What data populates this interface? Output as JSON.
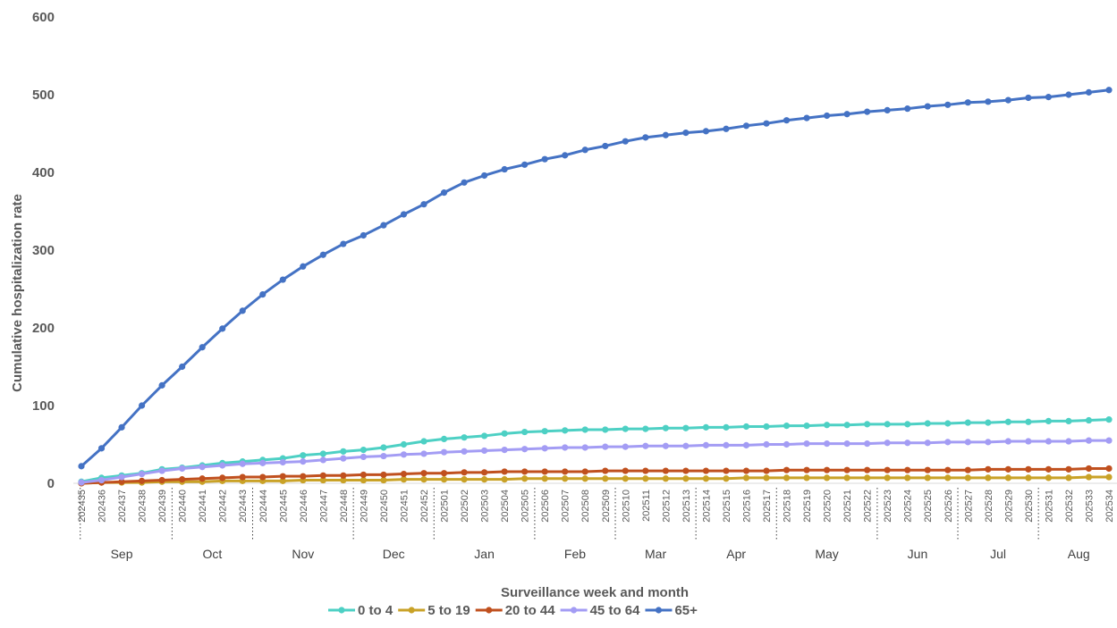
{
  "chart_data": {
    "type": "line",
    "xlabel": "Surveillance week and month",
    "ylabel": "Cumulative hospitalization rate",
    "ylim": [
      0,
      600
    ],
    "yticks": [
      "0",
      "100",
      "200",
      "300",
      "400",
      "500",
      "600"
    ],
    "grid": false,
    "legend": "bottom",
    "x": [
      "202435",
      "202436",
      "202437",
      "202438",
      "202439",
      "202440",
      "202441",
      "202442",
      "202443",
      "202444",
      "202445",
      "202446",
      "202447",
      "202448",
      "202449",
      "202450",
      "202451",
      "202452",
      "202501",
      "202502",
      "202503",
      "202504",
      "202505",
      "202506",
      "202507",
      "202508",
      "202509",
      "202510",
      "202511",
      "202512",
      "202513",
      "202514",
      "202515",
      "202516",
      "202517",
      "202518",
      "202519",
      "202520",
      "202521",
      "202522",
      "202523",
      "202524",
      "202525",
      "202526",
      "202527",
      "202528",
      "202529",
      "202530",
      "202531",
      "202532",
      "202533",
      "202534"
    ],
    "months": [
      {
        "label": "Sep",
        "start": 0,
        "end": 4
      },
      {
        "label": "Oct",
        "start": 5,
        "end": 8
      },
      {
        "label": "Nov",
        "start": 9,
        "end": 13
      },
      {
        "label": "Dec",
        "start": 14,
        "end": 17
      },
      {
        "label": "Jan",
        "start": 18,
        "end": 22
      },
      {
        "label": "Feb",
        "start": 23,
        "end": 26
      },
      {
        "label": "Mar",
        "start": 27,
        "end": 30
      },
      {
        "label": "Apr",
        "start": 31,
        "end": 34
      },
      {
        "label": "May",
        "start": 35,
        "end": 39
      },
      {
        "label": "Jun",
        "start": 40,
        "end": 43
      },
      {
        "label": "Jul",
        "start": 44,
        "end": 47
      },
      {
        "label": "Aug",
        "start": 48,
        "end": 51
      }
    ],
    "series": [
      {
        "name": "0 to 4",
        "color": "#4dd0c4",
        "values": [
          2,
          7,
          10,
          13,
          18,
          20,
          23,
          26,
          28,
          30,
          32,
          36,
          38,
          41,
          43,
          46,
          50,
          54,
          57,
          59,
          61,
          64,
          66,
          67,
          68,
          69,
          69,
          70,
          70,
          71,
          71,
          72,
          72,
          73,
          73,
          74,
          74,
          75,
          75,
          76,
          76,
          76,
          77,
          77,
          78,
          78,
          79,
          79,
          80,
          80,
          81,
          82
        ]
      },
      {
        "name": "5 to 19",
        "color": "#c9a227",
        "values": [
          0,
          1,
          1,
          1,
          2,
          2,
          2,
          3,
          3,
          3,
          3,
          4,
          4,
          4,
          4,
          4,
          5,
          5,
          5,
          5,
          5,
          5,
          6,
          6,
          6,
          6,
          6,
          6,
          6,
          6,
          6,
          6,
          6,
          7,
          7,
          7,
          7,
          7,
          7,
          7,
          7,
          7,
          7,
          7,
          7,
          7,
          7,
          7,
          7,
          7,
          8,
          8
        ]
      },
      {
        "name": "20 to 44",
        "color": "#c0501e",
        "values": [
          0,
          1,
          2,
          3,
          4,
          5,
          6,
          7,
          8,
          8,
          9,
          9,
          10,
          10,
          11,
          11,
          12,
          13,
          13,
          14,
          14,
          15,
          15,
          15,
          15,
          15,
          16,
          16,
          16,
          16,
          16,
          16,
          16,
          16,
          16,
          17,
          17,
          17,
          17,
          17,
          17,
          17,
          17,
          17,
          17,
          18,
          18,
          18,
          18,
          18,
          19,
          19
        ]
      },
      {
        "name": "45 to 64",
        "color": "#a39cf4",
        "values": [
          1,
          4,
          8,
          12,
          16,
          19,
          21,
          23,
          25,
          26,
          27,
          28,
          30,
          32,
          34,
          35,
          37,
          38,
          40,
          41,
          42,
          43,
          44,
          45,
          46,
          46,
          47,
          47,
          48,
          48,
          48,
          49,
          49,
          49,
          50,
          50,
          51,
          51,
          51,
          51,
          52,
          52,
          52,
          53,
          53,
          53,
          54,
          54,
          54,
          54,
          55,
          55
        ]
      },
      {
        "name": "65+",
        "color": "#4472c4",
        "values": [
          22,
          45,
          72,
          100,
          126,
          150,
          175,
          199,
          222,
          243,
          262,
          279,
          294,
          308,
          319,
          332,
          346,
          359,
          374,
          387,
          396,
          404,
          410,
          417,
          422,
          429,
          434,
          440,
          445,
          448,
          451,
          453,
          456,
          460,
          463,
          467,
          470,
          473,
          475,
          478,
          480,
          482,
          485,
          487,
          490,
          491,
          493,
          496,
          497,
          500,
          503,
          506
        ]
      }
    ]
  }
}
